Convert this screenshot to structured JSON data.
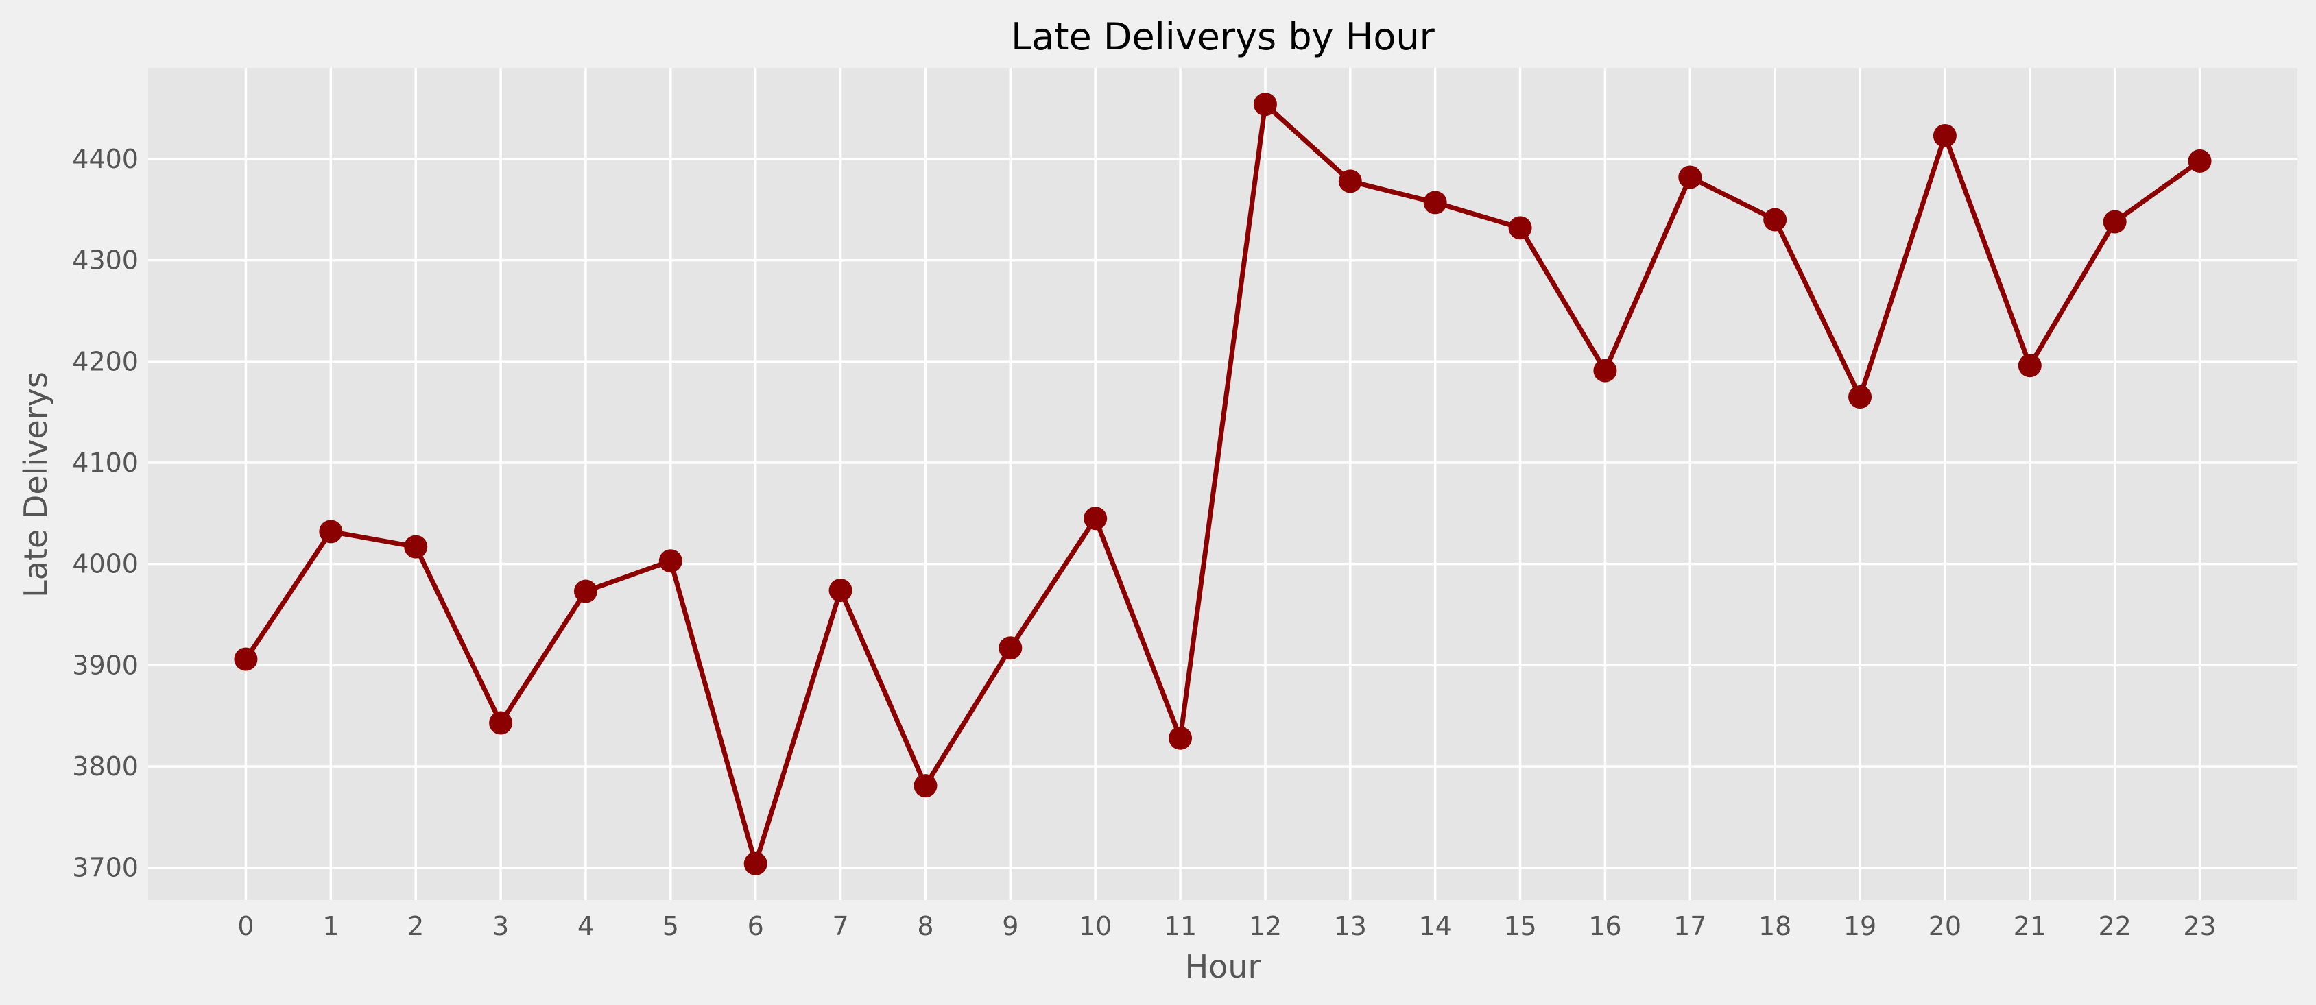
{
  "chart_data": {
    "type": "line",
    "title": "Late Deliverys by Hour",
    "xlabel": "Hour",
    "ylabel": "Late Deliverys",
    "x": [
      0,
      1,
      2,
      3,
      4,
      5,
      6,
      7,
      8,
      9,
      10,
      11,
      12,
      13,
      14,
      15,
      16,
      17,
      18,
      19,
      20,
      21,
      22,
      23
    ],
    "xticks": [
      "0",
      "1",
      "2",
      "3",
      "4",
      "5",
      "6",
      "7",
      "8",
      "9",
      "10",
      "11",
      "12",
      "13",
      "14",
      "15",
      "16",
      "17",
      "18",
      "19",
      "20",
      "21",
      "22",
      "23"
    ],
    "yticks": [
      3700,
      3800,
      3900,
      4000,
      4100,
      4200,
      4300,
      4400
    ],
    "ytick_labels": [
      "3700",
      "3800",
      "3900",
      "4000",
      "4100",
      "4200",
      "4300",
      "4400"
    ],
    "xlim": [
      -1.15,
      24.15
    ],
    "ylim": [
      3668,
      4490
    ],
    "grid": true,
    "series": [
      {
        "values": [
          3906,
          4032,
          4017,
          3843,
          3973,
          4003,
          3704,
          3974,
          3781,
          3917,
          4045,
          3828,
          4454,
          4378,
          4357,
          4332,
          4191,
          4382,
          4340,
          4165,
          4423,
          4196,
          4338,
          4398
        ]
      }
    ],
    "colors": {
      "line": "#8b0000",
      "plot_background": "#e5e5e5",
      "figure_background": "#f0f0f0",
      "grid": "#ffffff"
    }
  }
}
